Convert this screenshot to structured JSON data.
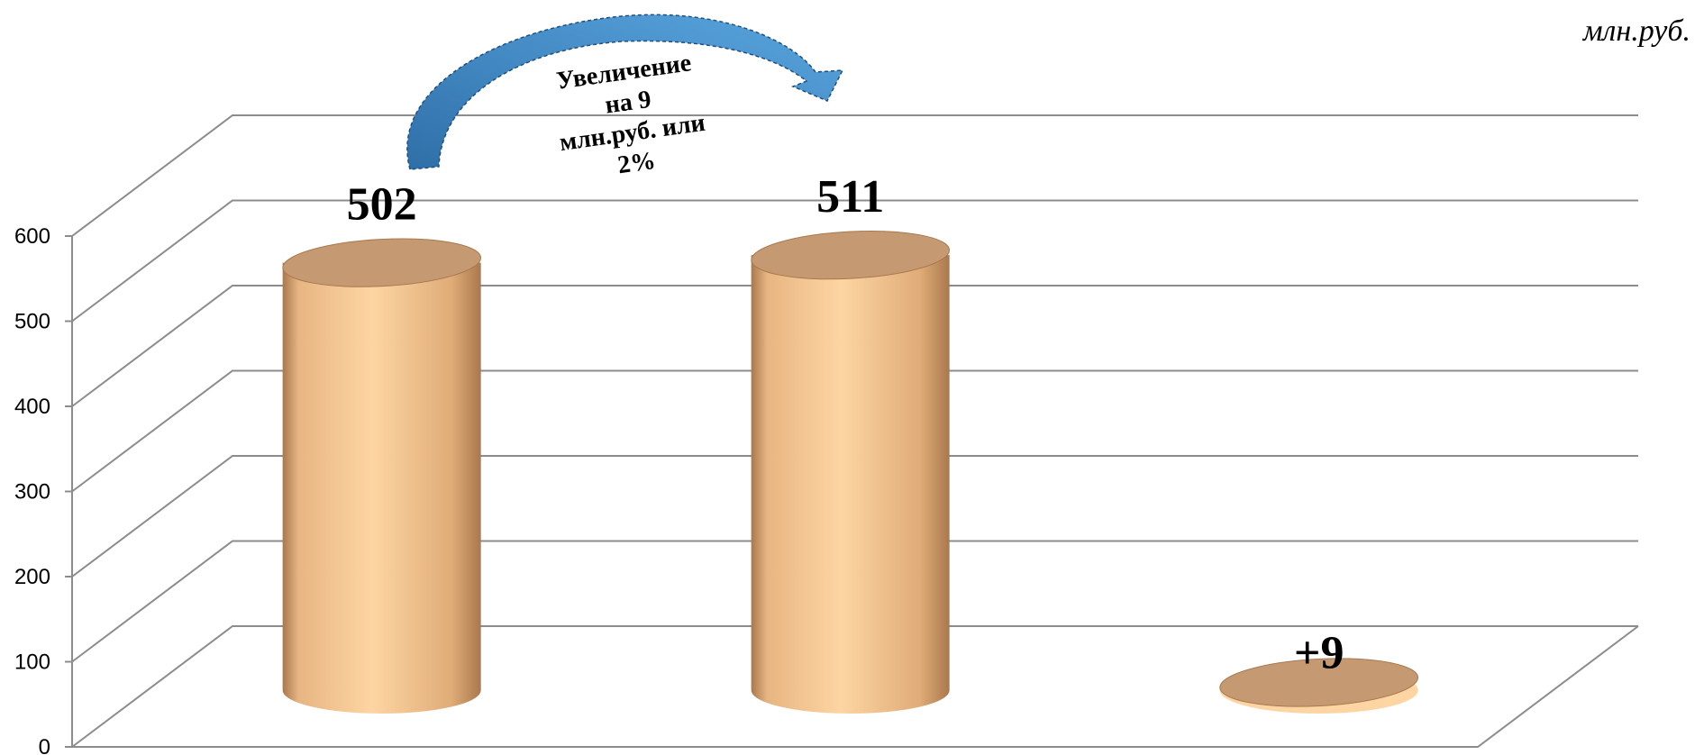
{
  "unit_label": "млн.руб.",
  "annotation": {
    "lines": [
      "Увеличение",
      "на 9",
      "млн.руб. или",
      "2%"
    ],
    "arrow_color": "#3e86c4"
  },
  "colors": {
    "bar_light": "#fdd5a2",
    "bar_dark": "#a9784d",
    "bar_top": "#c59a72",
    "grid": "#8c8c8c"
  },
  "chart_data": {
    "type": "bar",
    "style": "3d-cylinder",
    "categories": [
      "",
      "",
      ""
    ],
    "values": [
      502,
      511,
      9
    ],
    "data_labels": [
      "502",
      "511",
      "+9"
    ],
    "ylim": [
      0,
      600
    ],
    "yticks": [
      0,
      100,
      200,
      300,
      400,
      500,
      600
    ],
    "ytick_labels": [
      "0",
      "100",
      "200",
      "300",
      "400",
      "500",
      "600"
    ],
    "grid": true,
    "legend": false,
    "title": "",
    "xlabel": "",
    "ylabel": ""
  }
}
